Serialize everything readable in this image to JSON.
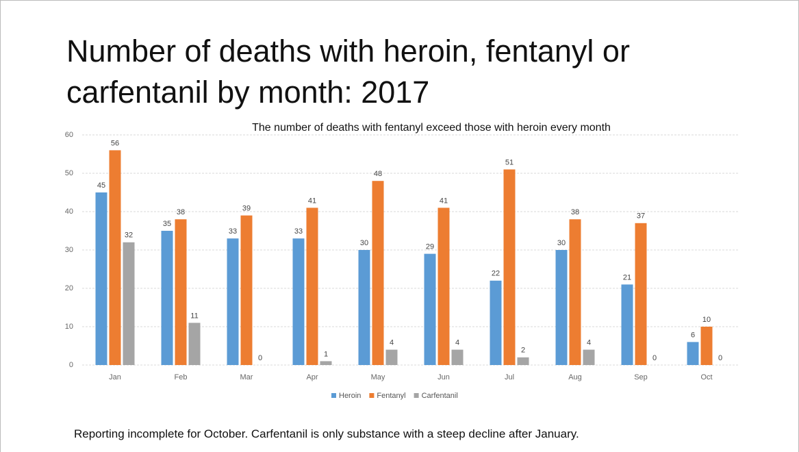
{
  "chart_data": {
    "type": "bar",
    "title": "Number of deaths with heroin, fentanyl or carfentanil by month: 2017",
    "subtitle": "The number of deaths with fentanyl exceed those with heroin every month",
    "footnote": "Reporting incomplete for  October. Carfentanil is only substance with a steep decline after January.",
    "categories": [
      "Jan",
      "Feb",
      "Mar",
      "Apr",
      "May",
      "Jun",
      "Jul",
      "Aug",
      "Sep",
      "Oct"
    ],
    "series": [
      {
        "name": "Heroin",
        "color": "#5b9bd5",
        "values": [
          45,
          35,
          33,
          33,
          30,
          29,
          22,
          30,
          21,
          6
        ]
      },
      {
        "name": "Fentanyl",
        "color": "#ed7d31",
        "values": [
          56,
          38,
          39,
          41,
          48,
          41,
          51,
          38,
          37,
          10
        ]
      },
      {
        "name": "Carfentanil",
        "color": "#a5a5a5",
        "values": [
          32,
          11,
          0,
          1,
          4,
          4,
          2,
          4,
          0,
          0
        ]
      }
    ],
    "ylim": [
      0,
      60
    ],
    "yticks": [
      0,
      10,
      20,
      30,
      40,
      50,
      60
    ],
    "grid": true,
    "legend": "bottom"
  }
}
